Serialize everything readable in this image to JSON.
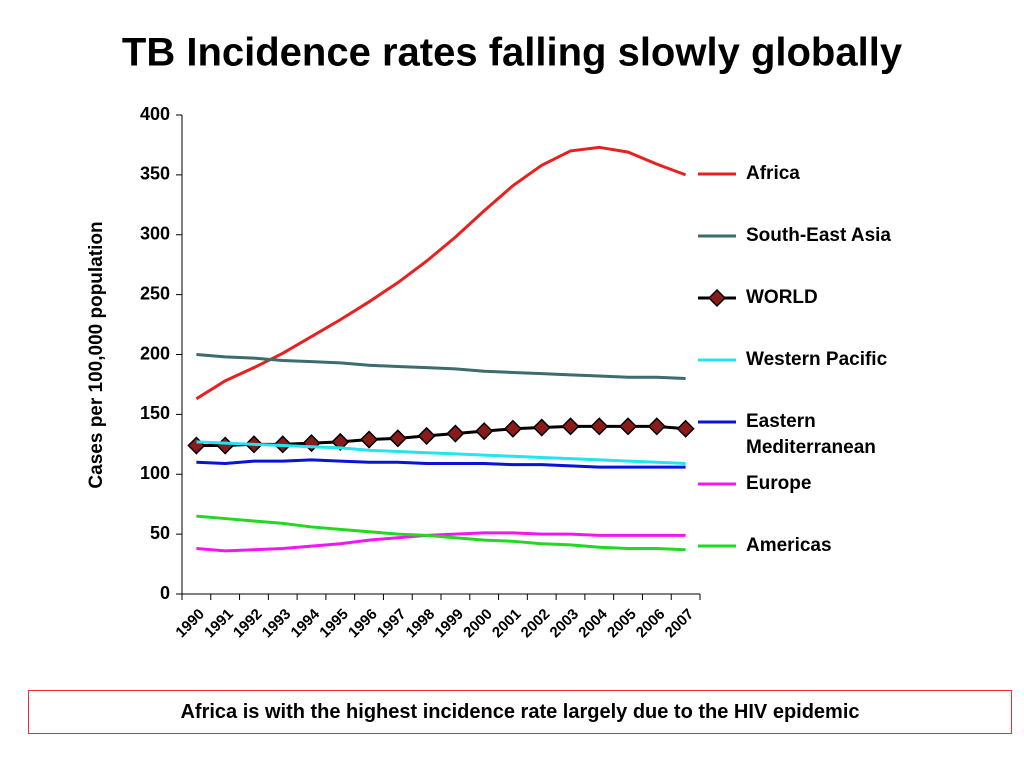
{
  "chart_data": {
    "type": "line",
    "title": "TB Incidence rates falling slowly globally",
    "y_label": "Cases per 100,000  population",
    "categories": [
      "1990",
      "1991",
      "1992",
      "1993",
      "1994",
      "1995",
      "1996",
      "1997",
      "1998",
      "1999",
      "2000",
      "2001",
      "2002",
      "2003",
      "2004",
      "2005",
      "2006",
      "2007"
    ],
    "ylim": [
      0,
      400
    ],
    "yticks": [
      0,
      50,
      100,
      150,
      200,
      250,
      300,
      350,
      400
    ],
    "series": [
      {
        "name": "Africa",
        "color": "#e8201f",
        "values": [
          163,
          178,
          189,
          201,
          215,
          229,
          244,
          260,
          278,
          298,
          320,
          341,
          358,
          370,
          373,
          369,
          359,
          350
        ]
      },
      {
        "name": "South-East Asia",
        "color": "#3d6b6e",
        "values": [
          200,
          198,
          197,
          195,
          194,
          193,
          191,
          190,
          189,
          188,
          186,
          185,
          184,
          183,
          182,
          181,
          181,
          180
        ]
      },
      {
        "name": "WORLD",
        "color": "#000000",
        "marker": "diamond",
        "marker_color": "#8b1a1a",
        "values": [
          124,
          124,
          125,
          125,
          126,
          127,
          129,
          130,
          132,
          134,
          136,
          138,
          139,
          140,
          140,
          140,
          140,
          138
        ]
      },
      {
        "name": "Western Pacific",
        "color": "#22e5f0",
        "values": [
          127,
          126,
          125,
          124,
          123,
          122,
          120,
          119,
          118,
          117,
          116,
          115,
          114,
          113,
          112,
          111,
          110,
          109
        ]
      },
      {
        "name": "Eastern Mediterranean",
        "color": "#0a14d6",
        "values": [
          110,
          109,
          111,
          111,
          112,
          111,
          110,
          110,
          109,
          109,
          109,
          108,
          108,
          107,
          106,
          106,
          106,
          106
        ]
      },
      {
        "name": "Europe",
        "color": "#f018f0",
        "values": [
          38,
          36,
          37,
          38,
          40,
          42,
          45,
          47,
          49,
          50,
          51,
          51,
          50,
          50,
          49,
          49,
          49,
          49
        ]
      },
      {
        "name": "Americas",
        "color": "#22d822",
        "values": [
          65,
          63,
          61,
          59,
          56,
          54,
          52,
          50,
          49,
          47,
          45,
          44,
          42,
          41,
          39,
          38,
          38,
          37
        ]
      }
    ]
  },
  "footer": "Africa is with the highest incidence rate largely due to the HIV epidemic"
}
